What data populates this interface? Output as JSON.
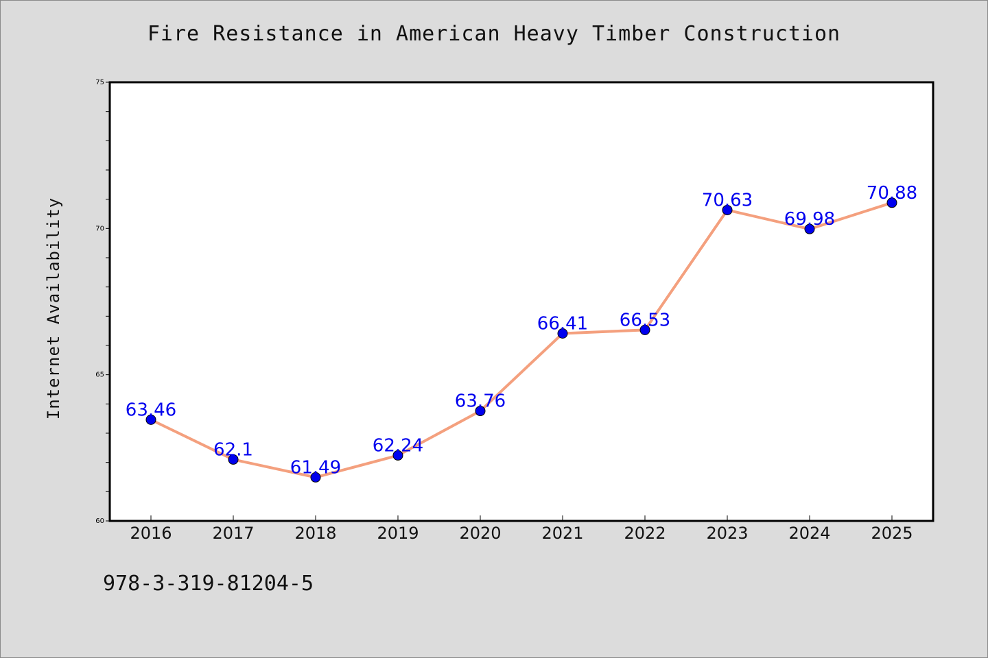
{
  "chart_data": {
    "type": "line",
    "title": "Fire Resistance in American Heavy Timber Construction",
    "xlabel": "",
    "ylabel": "Internet Availability",
    "categories": [
      "2016",
      "2017",
      "2018",
      "2019",
      "2020",
      "2021",
      "2022",
      "2023",
      "2024",
      "2025"
    ],
    "series": [
      {
        "values": [
          63.46,
          62.1,
          61.49,
          62.24,
          63.76,
          66.41,
          66.53,
          70.63,
          69.98,
          70.88
        ],
        "labels": [
          "63.46",
          "62.1",
          "61.49",
          "62.24",
          "63.76",
          "66.41",
          "66.53",
          "70.63",
          "69.98",
          "70.88"
        ]
      }
    ],
    "ylim": [
      60,
      75
    ],
    "yticks": [
      "60",
      "65",
      "70",
      "75"
    ],
    "grid": false,
    "legend": "none",
    "colors": {
      "line": "#f4a07e",
      "marker": "#0000ee",
      "label": "#0000ee"
    }
  },
  "footer": {
    "isbn": "978-3-319-81204-5"
  }
}
